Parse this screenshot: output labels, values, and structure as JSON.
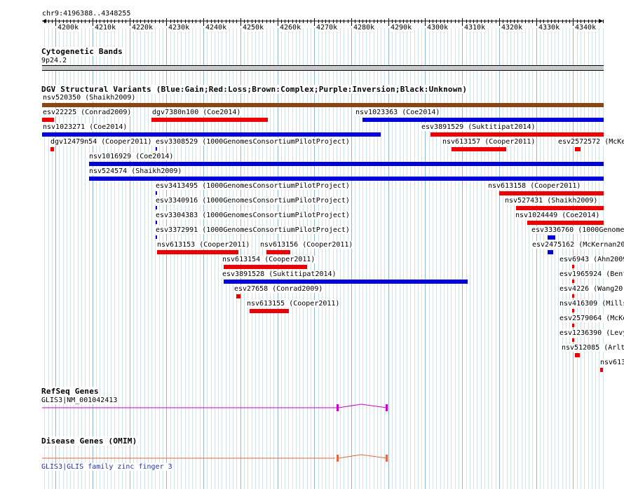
{
  "position_label": "chr9:4196388..4348255",
  "ruler": {
    "ticks": [
      "4200k",
      "4210k",
      "4220k",
      "4230k",
      "4240k",
      "4250k",
      "4260k",
      "4270k",
      "4280k",
      "4290k",
      "4300k",
      "4310k",
      "4320k",
      "4330k",
      "4340k"
    ]
  },
  "cytoband": {
    "title": "Cytogenetic Bands",
    "band": "9p24.2"
  },
  "dgv": {
    "title": "DGV Structural Variants (Blue:Gain;Red:Loss;Brown:Complex;Purple:Inversion;Black:Unknown)",
    "colors": {
      "gain": "#0000dd",
      "loss": "#ee0000",
      "complex": "#8b4513"
    },
    "variants": [
      {
        "label": "nsv520350 (Shaikh2009)",
        "type": "complex",
        "start": 4196388,
        "end": 4348255
      },
      {
        "label": "esv22225 (Conrad2009)",
        "type": "loss",
        "start": 4196388,
        "end": 4199600
      },
      {
        "label": "dgv7380n100 (Coe2014)",
        "type": "loss",
        "start": 4226000,
        "end": 4257500
      },
      {
        "label": "nsv1023363 (Coe2014)",
        "type": "gain",
        "start": 4283000,
        "end": 4348255
      },
      {
        "label": "nsv1023271 (Coe2014)",
        "type": "gain",
        "start": 4196388,
        "end": 4288000
      },
      {
        "label": "esv3891529 (Suktitipat2014)",
        "type": "loss",
        "start": 4301500,
        "end": 4348255
      },
      {
        "label": "dgv12479n54 (Cooper2011)",
        "type": "loss",
        "start": 4198700,
        "end": 4199600
      },
      {
        "label": "esv3308529 (1000GenomesConsortiumPilotProject)",
        "type": "gain",
        "start": 4227100,
        "end": 4227500
      },
      {
        "label": "nsv613157 (Cooper2011)",
        "type": "loss",
        "start": 4307200,
        "end": 4322000
      },
      {
        "label": "esv2572572 (McKe",
        "type": "loss",
        "start": 4340400,
        "end": 4342000
      },
      {
        "label": "nsv1016929 (Coe2014)",
        "type": "gain",
        "start": 4209000,
        "end": 4348255
      },
      {
        "label": "nsv524574 (Shaikh2009)",
        "type": "gain",
        "start": 4209000,
        "end": 4348255
      },
      {
        "label": "esv3413495 (1000GenomesConsortiumPilotProject)",
        "type": "gain",
        "start": 4227100,
        "end": 4227500
      },
      {
        "label": "nsv613158 (Cooper2011)",
        "type": "loss",
        "start": 4320000,
        "end": 4348255
      },
      {
        "label": "esv3340916 (1000GenomesConsortiumPilotProject)",
        "type": "gain",
        "start": 4227100,
        "end": 4227500
      },
      {
        "label": "nsv527431 (Shaikh2009)",
        "type": "loss",
        "start": 4324500,
        "end": 4348255
      },
      {
        "label": "esv3304383 (1000GenomesConsortiumPilotProject)",
        "type": "gain",
        "start": 4227100,
        "end": 4227500
      },
      {
        "label": "nsv1024449 (Coe2014)",
        "type": "loss",
        "start": 4327500,
        "end": 4348255
      },
      {
        "label": "esv3372991 (1000GenomesConsortiumPilotProject)",
        "type": "gain",
        "start": 4227100,
        "end": 4227500
      },
      {
        "label": "esv3336760 (1000Genome",
        "type": "gain",
        "start": 4333000,
        "end": 4335000
      },
      {
        "label": "nsv613153 (Cooper2011)",
        "type": "loss",
        "start": 4227500,
        "end": 4249500
      },
      {
        "label": "nsv613156 (Cooper2011)",
        "type": "loss",
        "start": 4257000,
        "end": 4263500
      },
      {
        "label": "esv2475162 (McKernan20",
        "type": "gain",
        "start": 4333000,
        "end": 4334500
      },
      {
        "label": "esv6943 (Ahn2009",
        "type": "loss",
        "start": 4339800,
        "end": 4340400
      },
      {
        "label": "nsv613154 (Cooper2011)",
        "type": "loss",
        "start": 4245500,
        "end": 4268000
      },
      {
        "label": "esv1965924 (Bent",
        "type": "loss",
        "start": 4339800,
        "end": 4340400
      },
      {
        "label": "esv3891528 (Suktitipat2014)",
        "type": "gain",
        "start": 4245500,
        "end": 4311500
      },
      {
        "label": "esv4226 (Wang20",
        "type": "loss",
        "start": 4339800,
        "end": 4340400
      },
      {
        "label": "esv27658 (Conrad2009)",
        "type": "loss",
        "start": 4249000,
        "end": 4250200
      },
      {
        "label": "nsv416309 (Mills",
        "type": "loss",
        "start": 4339800,
        "end": 4340400
      },
      {
        "label": "nsv613155 (Cooper2011)",
        "type": "loss",
        "start": 4252600,
        "end": 4263300
      },
      {
        "label": "esv2579064 (McKe",
        "type": "loss",
        "start": 4339800,
        "end": 4340400
      },
      {
        "label": "esv1236390 (Levy",
        "type": "loss",
        "start": 4339800,
        "end": 4340400
      },
      {
        "label": "nsv512085 (Arlt",
        "type": "loss",
        "start": 4340500,
        "end": 4341800
      },
      {
        "label": "nsv613",
        "type": "loss",
        "start": 4347300,
        "end": 4348100
      }
    ]
  },
  "refseq": {
    "title": "RefSeq Genes",
    "gene_label": "GLIS3|NM_001042413",
    "color": "#cc00cc"
  },
  "omim": {
    "title": "Disease Genes (OMIM)",
    "gene_label": "GLIS3|GLIS family zinc finger 3",
    "color": "#e8663a"
  }
}
